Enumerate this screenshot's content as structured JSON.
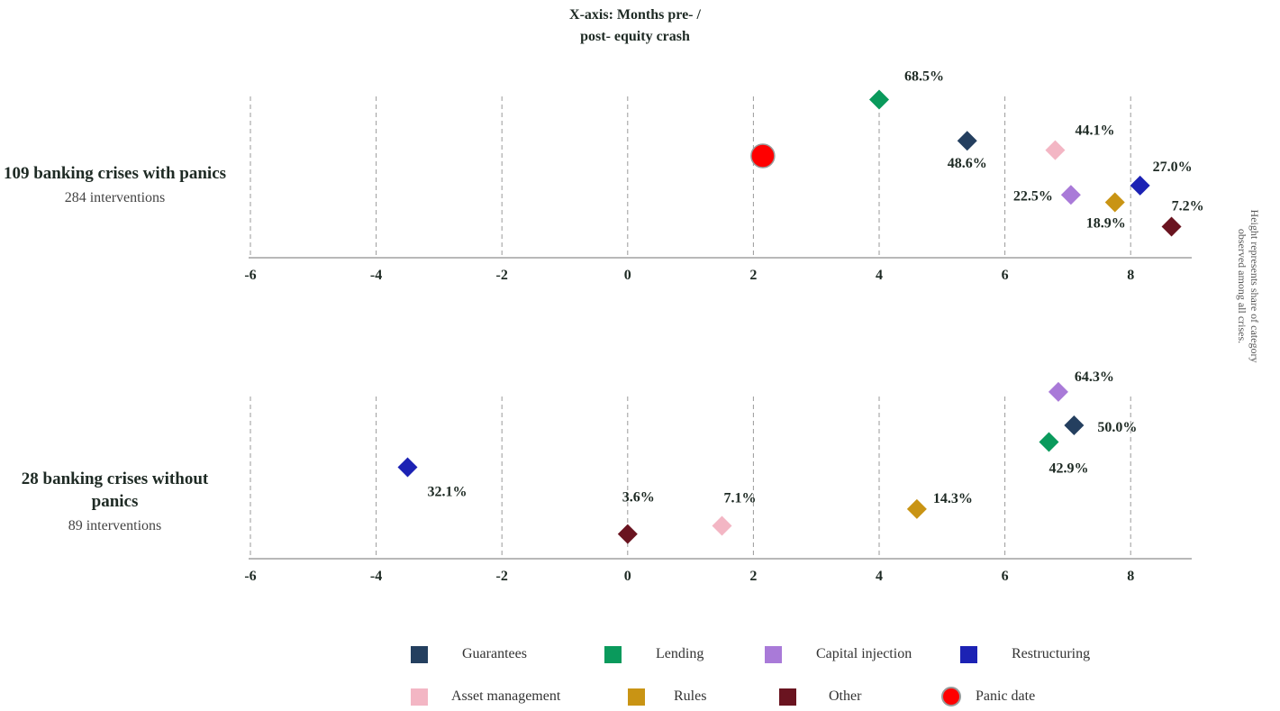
{
  "title_lines": [
    "X-axis: Months pre- /",
    "post- equity crash"
  ],
  "side_note": "Height represents share of category observed among all crises.",
  "colors": {
    "Guarantees": "#243f5f",
    "Lending": "#0a9a5c",
    "Capital injection": "#a97ad8",
    "Restructuring": "#1c22b4",
    "Asset management": "#f3b6c4",
    "Rules": "#c99414",
    "Other": "#6a1420",
    "Panic date": "#ff0000"
  },
  "chart_data": [
    {
      "type": "scatter",
      "title": "109 banking crises with panics",
      "subtitle": "284 interventions",
      "x_ticks": [
        -6,
        -4,
        -2,
        0,
        2,
        4,
        6,
        8
      ],
      "xlim": [
        -6,
        9
      ],
      "points": [
        {
          "series": "Lending",
          "x": 4.0,
          "y": 68.5,
          "label": "68.5%"
        },
        {
          "series": "Guarantees",
          "x": 5.4,
          "y": 48.6,
          "label": "48.6%"
        },
        {
          "series": "Asset management",
          "x": 6.8,
          "y": 44.1,
          "label": "44.1%"
        },
        {
          "series": "Restructuring",
          "x": 8.15,
          "y": 27.0,
          "label": "27.0%"
        },
        {
          "series": "Capital injection",
          "x": 7.05,
          "y": 22.5,
          "label": "22.5%"
        },
        {
          "series": "Rules",
          "x": 7.75,
          "y": 18.9,
          "label": "18.9%"
        },
        {
          "series": "Other",
          "x": 8.65,
          "y": 7.2,
          "label": "7.2%"
        }
      ],
      "panic_date": 2.15
    },
    {
      "type": "scatter",
      "title": "28 banking crises without panics",
      "subtitle": "89 interventions",
      "x_ticks": [
        -6,
        -4,
        -2,
        0,
        2,
        4,
        6,
        8
      ],
      "xlim": [
        -6,
        9
      ],
      "points": [
        {
          "series": "Capital injection",
          "x": 6.85,
          "y": 64.3,
          "label": "64.3%"
        },
        {
          "series": "Guarantees",
          "x": 7.1,
          "y": 50.0,
          "label": "50.0%"
        },
        {
          "series": "Lending",
          "x": 6.7,
          "y": 42.9,
          "label": "42.9%"
        },
        {
          "series": "Restructuring",
          "x": -3.5,
          "y": 32.1,
          "label": "32.1%"
        },
        {
          "series": "Rules",
          "x": 4.6,
          "y": 14.3,
          "label": "14.3%"
        },
        {
          "series": "Asset management",
          "x": 1.5,
          "y": 7.1,
          "label": "7.1%"
        },
        {
          "series": "Other",
          "x": 0.0,
          "y": 3.6,
          "label": "3.6%"
        }
      ]
    }
  ],
  "legend": [
    {
      "label": "Guarantees",
      "shape": "square"
    },
    {
      "label": "Lending",
      "shape": "square"
    },
    {
      "label": "Capital injection",
      "shape": "square"
    },
    {
      "label": "Restructuring",
      "shape": "square"
    },
    {
      "label": "Asset management",
      "shape": "square"
    },
    {
      "label": "Rules",
      "shape": "square"
    },
    {
      "label": "Other",
      "shape": "square"
    },
    {
      "label": "Panic date",
      "shape": "circle"
    }
  ]
}
